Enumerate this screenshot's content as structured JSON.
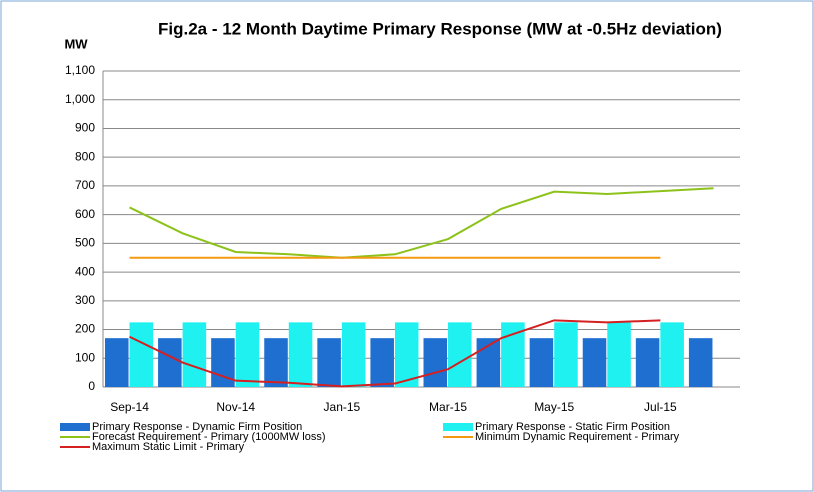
{
  "chart_data": {
    "type": "bar",
    "title": "Fig.2a - 12 Month Daytime Primary Response (MW at -0.5Hz deviation)",
    "y_label": "MW",
    "categories": [
      "Sep-14",
      null,
      "Nov-14",
      null,
      "Jan-15",
      null,
      "Mar-15",
      null,
      "May-15",
      null,
      "Jul-15",
      null
    ],
    "series": [
      {
        "name": "Primary Response - Dynamic Firm Position",
        "type": "bar",
        "color": "#1f6fd1",
        "values": [
          170,
          170,
          170,
          170,
          170,
          170,
          170,
          170,
          170,
          170,
          170,
          170
        ]
      },
      {
        "name": "Primary Response - Static Firm Position",
        "type": "bar",
        "color": "#1ff0f0",
        "values": [
          225,
          225,
          225,
          225,
          225,
          225,
          225,
          225,
          225,
          225,
          225,
          null
        ]
      },
      {
        "name": "Forecast Requirement - Primary (1000MW loss)",
        "type": "line",
        "color": "#8cc21a",
        "values": [
          625,
          535,
          470,
          462,
          450,
          462,
          515,
          620,
          680,
          672,
          682,
          692
        ]
      },
      {
        "name": "Minimum Dynamic Requirement - Primary",
        "type": "line",
        "color": "#f39a12",
        "values": [
          450,
          450,
          450,
          450,
          450,
          450,
          450,
          450,
          450,
          450,
          450,
          null
        ]
      },
      {
        "name": "Maximum Static Limit - Primary",
        "type": "line",
        "color": "#d42020",
        "values": [
          175,
          85,
          22,
          15,
          2,
          12,
          62,
          170,
          232,
          225,
          232,
          null
        ]
      }
    ],
    "ylim": [
      0,
      1100
    ],
    "yticks": [
      0,
      100,
      200,
      300,
      400,
      500,
      600,
      700,
      800,
      900,
      {
        "value": 1000,
        "label": "1,000"
      },
      {
        "value": 1100,
        "label": "1,100"
      }
    ],
    "grid": true
  }
}
